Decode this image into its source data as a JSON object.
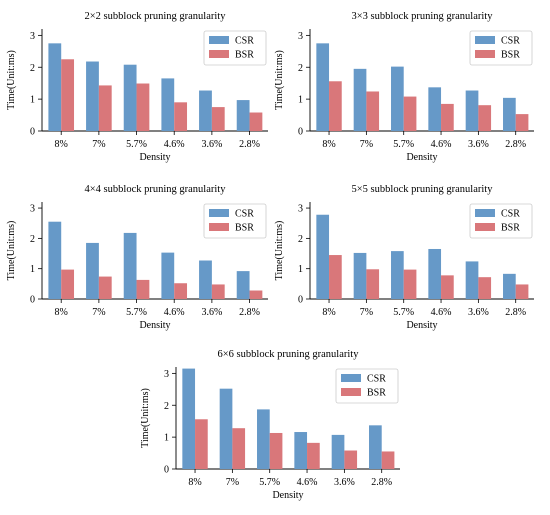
{
  "colors": {
    "csr": "#6699c8",
    "bsr": "#d9777a",
    "legend_border": "#cccccc"
  },
  "chart_data": [
    {
      "type": "bar",
      "title": "2×2 subblock pruning granularity",
      "xlabel": "Density",
      "ylabel": "Time(Unit:ms)",
      "categories": [
        "8%",
        "7%",
        "5.7%",
        "4.6%",
        "3.6%",
        "2.8%"
      ],
      "ylim": [
        0,
        3.2
      ],
      "yticks": [
        0,
        1,
        2,
        3
      ],
      "grid": false,
      "legend_position": "top-right",
      "series": [
        {
          "name": "CSR",
          "values": [
            2.75,
            2.18,
            2.08,
            1.65,
            1.27,
            0.97
          ]
        },
        {
          "name": "BSR",
          "values": [
            2.25,
            1.43,
            1.49,
            0.9,
            0.75,
            0.58
          ]
        }
      ]
    },
    {
      "type": "bar",
      "title": "3×3 subblock pruning granularity",
      "xlabel": "Density",
      "ylabel": "Time(Unit:ms)",
      "categories": [
        "8%",
        "7%",
        "5.7%",
        "4.6%",
        "3.6%",
        "2.8%"
      ],
      "ylim": [
        0,
        3.2
      ],
      "yticks": [
        0,
        1,
        2,
        3
      ],
      "grid": false,
      "legend_position": "top-right",
      "series": [
        {
          "name": "CSR",
          "values": [
            2.75,
            1.95,
            2.02,
            1.37,
            1.27,
            1.04
          ]
        },
        {
          "name": "BSR",
          "values": [
            1.56,
            1.24,
            1.08,
            0.85,
            0.81,
            0.53
          ]
        }
      ]
    },
    {
      "type": "bar",
      "title": "4×4 subblock pruning granularity",
      "xlabel": "Density",
      "ylabel": "Time(Unit:ms)",
      "categories": [
        "8%",
        "7%",
        "5.7%",
        "4.6%",
        "3.6%",
        "2.8%"
      ],
      "ylim": [
        0,
        3.2
      ],
      "yticks": [
        0,
        1,
        2,
        3
      ],
      "grid": false,
      "legend_position": "top-right",
      "series": [
        {
          "name": "CSR",
          "values": [
            2.55,
            1.85,
            2.18,
            1.53,
            1.27,
            0.92
          ]
        },
        {
          "name": "BSR",
          "values": [
            0.97,
            0.74,
            0.63,
            0.52,
            0.48,
            0.28
          ]
        }
      ]
    },
    {
      "type": "bar",
      "title": "5×5 subblock pruning granularity",
      "xlabel": "Density",
      "ylabel": "Time(Unit:ms)",
      "categories": [
        "8%",
        "7%",
        "5.7%",
        "4.6%",
        "3.6%",
        "2.8%"
      ],
      "ylim": [
        0,
        3.2
      ],
      "yticks": [
        0,
        1,
        2,
        3
      ],
      "grid": false,
      "legend_position": "top-right",
      "series": [
        {
          "name": "CSR",
          "values": [
            2.78,
            1.52,
            1.58,
            1.65,
            1.24,
            0.83
          ]
        },
        {
          "name": "BSR",
          "values": [
            1.45,
            0.98,
            0.97,
            0.78,
            0.72,
            0.48
          ]
        }
      ]
    },
    {
      "type": "bar",
      "title": "6×6 subblock pruning granularity",
      "xlabel": "Density",
      "ylabel": "Time(Unit:ms)",
      "categories": [
        "8%",
        "7%",
        "5.7%",
        "4.6%",
        "3.6%",
        "2.8%"
      ],
      "ylim": [
        0,
        3.2
      ],
      "yticks": [
        0,
        1,
        2,
        3
      ],
      "grid": false,
      "legend_position": "top-right",
      "series": [
        {
          "name": "CSR",
          "values": [
            3.15,
            2.52,
            1.87,
            1.16,
            1.07,
            1.37
          ]
        },
        {
          "name": "BSR",
          "values": [
            1.56,
            1.28,
            1.13,
            0.82,
            0.58,
            0.55
          ]
        }
      ]
    }
  ]
}
